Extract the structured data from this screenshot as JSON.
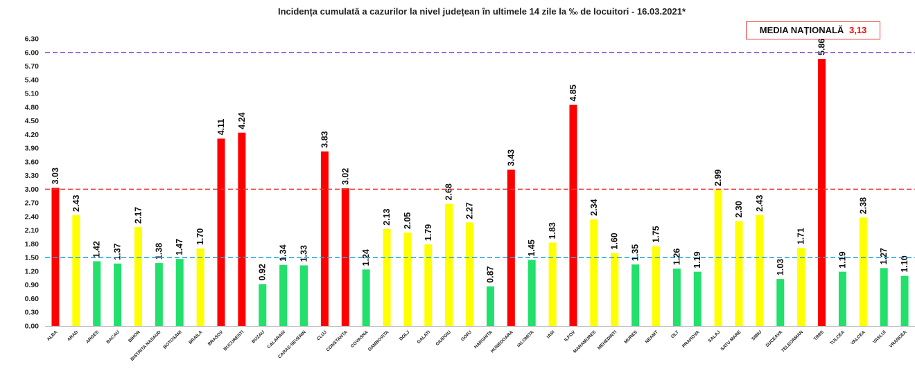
{
  "chart_data": {
    "type": "bar",
    "title": "Incidența cumulată a cazurilor la nivel județean în ultimele 14 zile la ‰ de locuitori - 16.03.2021*",
    "national_average": {
      "label": "MEDIA NAȚIONALĂ",
      "value": "3,13"
    },
    "ylim": [
      0,
      6.3
    ],
    "yticks": [
      "0.00",
      "0.30",
      "0.60",
      "0.90",
      "1.20",
      "1.50",
      "1.80",
      "2.10",
      "2.40",
      "2.70",
      "3.00",
      "3.30",
      "3.60",
      "3.90",
      "4.20",
      "4.50",
      "4.80",
      "5.10",
      "5.40",
      "5.70",
      "6.00",
      "6.30"
    ],
    "reference_lines": [
      {
        "value": 6.0,
        "color": "#8a4fd6"
      },
      {
        "value": 3.0,
        "color": "#e53935"
      },
      {
        "value": 1.5,
        "color": "#29a8e0"
      }
    ],
    "colors": {
      "red": "#ff0000",
      "yellow": "#ffff00",
      "green": "#22e06b"
    },
    "categories": [
      "ALBA",
      "ARAD",
      "ARGES",
      "BACAU",
      "BIHOR",
      "BISTRITA NASAUD",
      "BOTOSANI",
      "BRAILA",
      "BRASOV",
      "BUCURESTI",
      "BUZAU",
      "CALARASI",
      "CARAS-SEVERIN",
      "CLUJ",
      "CONSTANTA",
      "COVASNA",
      "DAMBOVITA",
      "DOLJ",
      "GALATI",
      "GIURGIU",
      "GORJ",
      "HARGHITA",
      "HUNEDOARA",
      "IALOMITA",
      "IASI",
      "ILFOV",
      "MARAMURES",
      "MEHEDINTI",
      "MURES",
      "NEAMT",
      "OLT",
      "PRAHOVA",
      "SALAJ",
      "SATU MARE",
      "SIBIU",
      "SUCEAVA",
      "TELEORMAN",
      "TIMIS",
      "TULCEA",
      "VALCEA",
      "VASLUI",
      "VRANCEA"
    ],
    "values": [
      3.03,
      2.43,
      1.42,
      1.37,
      2.17,
      1.38,
      1.47,
      1.7,
      4.11,
      4.24,
      0.92,
      1.34,
      1.33,
      3.83,
      3.02,
      1.24,
      2.13,
      2.05,
      1.79,
      2.68,
      2.27,
      0.87,
      3.43,
      1.45,
      1.83,
      4.85,
      2.34,
      1.6,
      1.35,
      1.75,
      1.26,
      1.19,
      2.99,
      2.3,
      2.43,
      1.03,
      1.71,
      5.86,
      1.19,
      2.38,
      1.27,
      1.1
    ],
    "value_labels": [
      "3.03",
      "2.43",
      "1.42",
      "1.37",
      "2.17",
      "1.38",
      "1.47",
      "1.70",
      "4.11",
      "4.24",
      "0.92",
      "1.34",
      "1.33",
      "3.83",
      "3.02",
      "1.24",
      "2.13",
      "2.05",
      "1.79",
      "2.68",
      "2.27",
      "0.87",
      "3.43",
      "1.45",
      "1.83",
      "4.85",
      "2.34",
      "1.60",
      "1.35",
      "1.75",
      "1.26",
      "1.19",
      "2.99",
      "2.30",
      "2.43",
      "1.03",
      "1.71",
      "5.86",
      "1.19",
      "2.38",
      "1.27",
      "1.10"
    ],
    "bar_colors": [
      "red",
      "yellow",
      "green",
      "green",
      "yellow",
      "green",
      "green",
      "yellow",
      "red",
      "red",
      "green",
      "green",
      "green",
      "red",
      "red",
      "green",
      "yellow",
      "yellow",
      "yellow",
      "yellow",
      "yellow",
      "green",
      "red",
      "green",
      "yellow",
      "red",
      "yellow",
      "yellow",
      "green",
      "yellow",
      "green",
      "green",
      "yellow",
      "yellow",
      "yellow",
      "green",
      "yellow",
      "red",
      "green",
      "yellow",
      "green",
      "green"
    ]
  }
}
